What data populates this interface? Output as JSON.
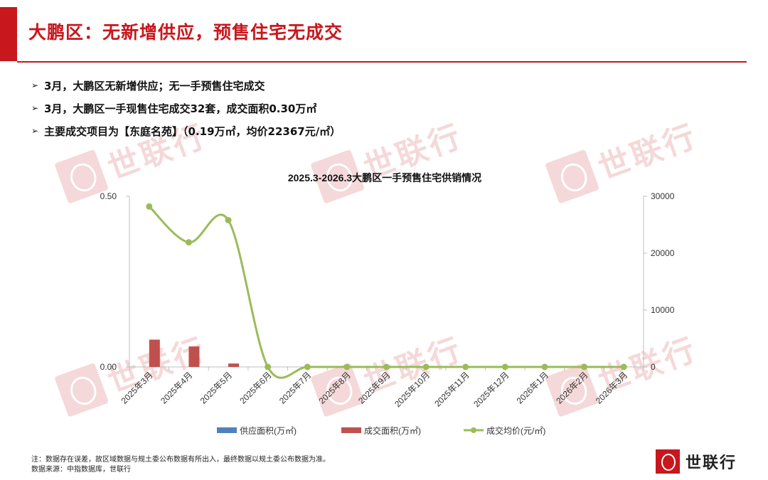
{
  "header": {
    "title": "大鹏区：无新增供应，预售住宅无成交"
  },
  "bullets": [
    "3月，大鹏区无新增供应；无一手预售住宅成交",
    "3月，大鹏区一手现售住宅成交32套，成交面积0.30万㎡",
    "主要成交项目为【东庭名苑】（0.19万㎡，均价22367元/㎡）"
  ],
  "watermark_text": "世联行",
  "colors": {
    "accent": "#c8171d",
    "supply": "#4f81bd",
    "deal": "#c0504d",
    "price": "#9bbb59"
  },
  "chart_data": {
    "type": "bar",
    "title": "2025.3-2026.3大鹏区一手预售住宅供销情况",
    "categories": [
      "2025年3月",
      "2025年4月",
      "2025年5月",
      "2025年6月",
      "2025年7月",
      "2025年8月",
      "2025年9月",
      "2025年10月",
      "2025年11月",
      "2025年12月",
      "2026年1月",
      "2026年2月",
      "2026年3月"
    ],
    "series": [
      {
        "name": "供应面积(万㎡)",
        "type": "bar",
        "axis": "left",
        "values": [
          0,
          0,
          0,
          0,
          0,
          0,
          0,
          0,
          0,
          0,
          0,
          0,
          0
        ]
      },
      {
        "name": "成交面积(万㎡)",
        "type": "bar",
        "axis": "left",
        "values": [
          0.08,
          0.06,
          0.01,
          0,
          0,
          0,
          0,
          0,
          0,
          0,
          0,
          0,
          0
        ]
      },
      {
        "name": "成交均价(元/㎡)",
        "type": "line",
        "axis": "right",
        "values": [
          28200,
          21900,
          25800,
          0,
          0,
          0,
          0,
          0,
          0,
          0,
          0,
          0,
          0
        ]
      }
    ],
    "y_left": {
      "ticks": [
        "0.00",
        "0.50"
      ],
      "range": [
        0,
        0.5
      ]
    },
    "y_right": {
      "ticks": [
        "0",
        "10000",
        "20000",
        "30000"
      ],
      "range": [
        0,
        30000
      ]
    },
    "grid": false,
    "legend": "bottom"
  },
  "footer": {
    "note": "注：数据存在误差，故区域数据与规土委公布数据有所出入，最终数据以规土委公布数据为准。",
    "source": "数据来源：中指数据库，世联行"
  },
  "brand": {
    "name": "世联行"
  }
}
